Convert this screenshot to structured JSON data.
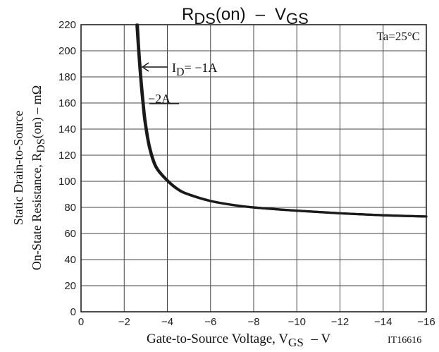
{
  "chart_data": {
    "type": "line",
    "title": {
      "main": "R",
      "main_sub": "DS",
      "main_suffix": "(on)",
      "dash": "–",
      "right": "V",
      "right_sub": "GS"
    },
    "xlabel": {
      "main": "Gate-to-Source Voltage, V",
      "sub": "GS",
      "suffix": " – V"
    },
    "ylabel": {
      "line1": "Static Drain-to-Source",
      "line2_main": "On-State Resistance, R",
      "line2_sub": "DS",
      "line2_suffix": "(on) – mΩ"
    },
    "annotation": "Ta=25°C",
    "figure_id": "IT16616",
    "xlim": [
      0,
      -16
    ],
    "ylim": [
      0,
      220
    ],
    "x_ticks": [
      0,
      -2,
      -4,
      -6,
      -8,
      -10,
      -12,
      -14,
      -16
    ],
    "x_tick_labels": [
      "0",
      "−2",
      "−4",
      "−6",
      "−8",
      "−10",
      "−12",
      "−14",
      "−16"
    ],
    "y_ticks": [
      0,
      20,
      40,
      60,
      80,
      100,
      120,
      140,
      160,
      180,
      200,
      220
    ],
    "y_tick_labels": [
      "0",
      "20",
      "40",
      "60",
      "80",
      "100",
      "120",
      "140",
      "160",
      "180",
      "200",
      "220"
    ],
    "grid": true,
    "series": [
      {
        "name": "ID= −1A",
        "label_main": "I",
        "label_sub": "D",
        "label_suffix": "= −1A",
        "x": [
          -2.63,
          -2.7,
          -2.8,
          -2.9,
          -3.0,
          -3.2,
          -3.5,
          -4.0,
          -4.5,
          -5.0,
          -6.0,
          -7.0,
          -8.0,
          -10.0,
          -12.0,
          -14.0,
          -16.0
        ],
        "y": [
          220,
          200,
          178,
          160,
          145,
          126,
          111,
          101,
          94,
          90,
          85,
          82,
          80,
          77.5,
          75.5,
          74,
          73
        ]
      },
      {
        "name": "−2A",
        "label_main": "−2A",
        "x": [
          -2.57,
          -2.65,
          -2.75,
          -2.85,
          -2.95,
          -3.15,
          -3.45,
          -3.95,
          -4.45,
          -4.95,
          -5.95,
          -6.95,
          -7.95,
          -9.95,
          -11.95,
          -13.95,
          -16.0
        ],
        "y": [
          220,
          200,
          178,
          160,
          145,
          126,
          111,
          101,
          94,
          90,
          85,
          82,
          80,
          77.5,
          75.5,
          74,
          73
        ]
      }
    ]
  }
}
